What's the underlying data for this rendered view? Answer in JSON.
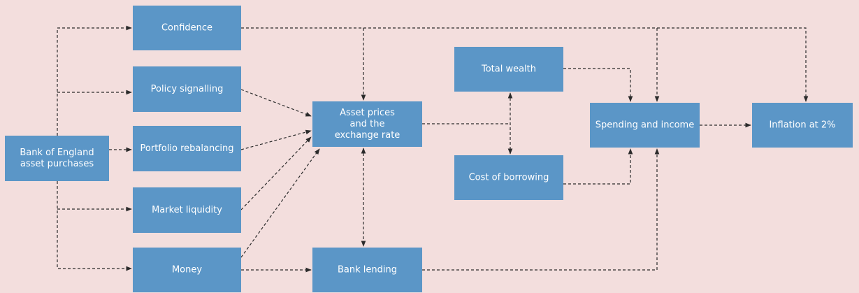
{
  "nodes": [
    {
      "id": "boe",
      "lines": [
        "Bank of England",
        "asset purchases"
      ]
    },
    {
      "id": "confidence",
      "lines": [
        "Confidence"
      ]
    },
    {
      "id": "policy",
      "lines": [
        "Policy signalling"
      ]
    },
    {
      "id": "portfolio",
      "lines": [
        "Portfolio rebalancing"
      ]
    },
    {
      "id": "liquidity",
      "lines": [
        "Market liquidity"
      ]
    },
    {
      "id": "money",
      "lines": [
        "Money"
      ]
    },
    {
      "id": "asset",
      "lines": [
        "Asset prices",
        "and the",
        "exchange rate"
      ]
    },
    {
      "id": "lending",
      "lines": [
        "Bank lending"
      ]
    },
    {
      "id": "wealth",
      "lines": [
        "Total wealth"
      ]
    },
    {
      "id": "borrowing",
      "lines": [
        "Cost of borrowing"
      ]
    },
    {
      "id": "spending",
      "lines": [
        "Spending and income"
      ]
    },
    {
      "id": "inflation",
      "lines": [
        "Inflation at 2%"
      ]
    }
  ]
}
